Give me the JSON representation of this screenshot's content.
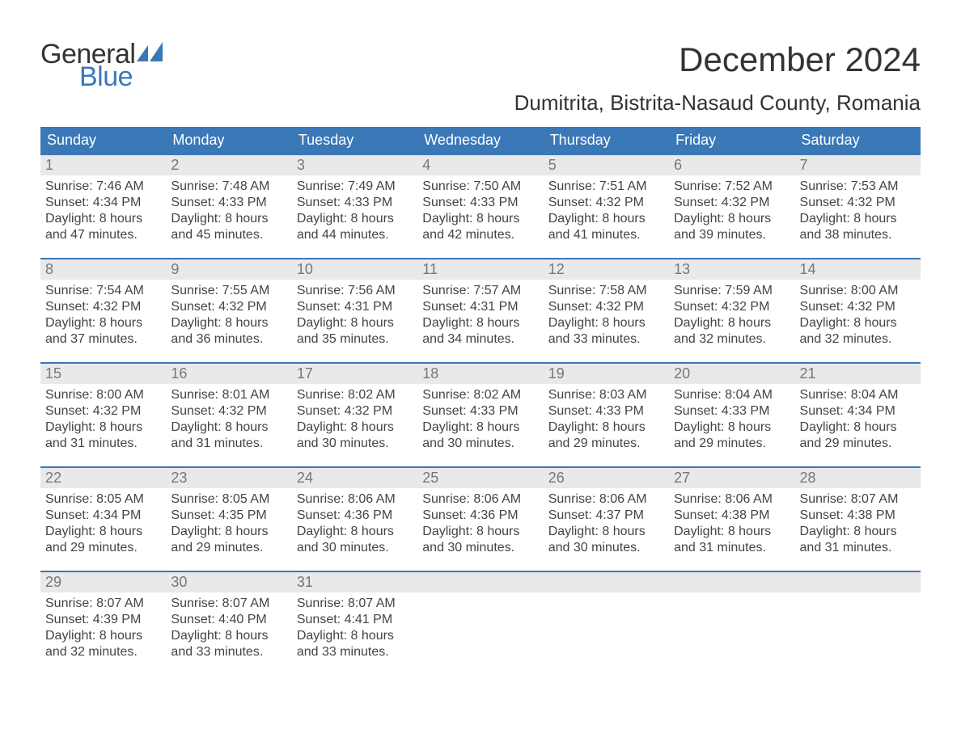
{
  "colors": {
    "header_bg": "#3a78b8",
    "header_text": "#ffffff",
    "daynum_bg": "#e9e9e9",
    "daynum_text": "#777777",
    "body_text": "#444444",
    "rule": "#3a78b8",
    "page_bg": "#ffffff",
    "logo_general": "#333333",
    "logo_blue": "#3a78b8"
  },
  "typography": {
    "title_fontsize": 42,
    "location_fontsize": 26,
    "weekday_fontsize": 18,
    "daynum_fontsize": 18,
    "body_fontsize": 16,
    "logo_fontsize": 34
  },
  "logo": {
    "line1": "General",
    "line2": "Blue"
  },
  "title": "December 2024",
  "location": "Dumitrita, Bistrita-Nasaud County, Romania",
  "weekdays": [
    "Sunday",
    "Monday",
    "Tuesday",
    "Wednesday",
    "Thursday",
    "Friday",
    "Saturday"
  ],
  "labels": {
    "sunrise": "Sunrise:",
    "sunset": "Sunset:",
    "daylight": "Daylight:"
  },
  "weeks": [
    [
      {
        "n": "1",
        "sunrise": "7:46 AM",
        "sunset": "4:34 PM",
        "daylight1": "8 hours",
        "daylight2": "and 47 minutes."
      },
      {
        "n": "2",
        "sunrise": "7:48 AM",
        "sunset": "4:33 PM",
        "daylight1": "8 hours",
        "daylight2": "and 45 minutes."
      },
      {
        "n": "3",
        "sunrise": "7:49 AM",
        "sunset": "4:33 PM",
        "daylight1": "8 hours",
        "daylight2": "and 44 minutes."
      },
      {
        "n": "4",
        "sunrise": "7:50 AM",
        "sunset": "4:33 PM",
        "daylight1": "8 hours",
        "daylight2": "and 42 minutes."
      },
      {
        "n": "5",
        "sunrise": "7:51 AM",
        "sunset": "4:32 PM",
        "daylight1": "8 hours",
        "daylight2": "and 41 minutes."
      },
      {
        "n": "6",
        "sunrise": "7:52 AM",
        "sunset": "4:32 PM",
        "daylight1": "8 hours",
        "daylight2": "and 39 minutes."
      },
      {
        "n": "7",
        "sunrise": "7:53 AM",
        "sunset": "4:32 PM",
        "daylight1": "8 hours",
        "daylight2": "and 38 minutes."
      }
    ],
    [
      {
        "n": "8",
        "sunrise": "7:54 AM",
        "sunset": "4:32 PM",
        "daylight1": "8 hours",
        "daylight2": "and 37 minutes."
      },
      {
        "n": "9",
        "sunrise": "7:55 AM",
        "sunset": "4:32 PM",
        "daylight1": "8 hours",
        "daylight2": "and 36 minutes."
      },
      {
        "n": "10",
        "sunrise": "7:56 AM",
        "sunset": "4:31 PM",
        "daylight1": "8 hours",
        "daylight2": "and 35 minutes."
      },
      {
        "n": "11",
        "sunrise": "7:57 AM",
        "sunset": "4:31 PM",
        "daylight1": "8 hours",
        "daylight2": "and 34 minutes."
      },
      {
        "n": "12",
        "sunrise": "7:58 AM",
        "sunset": "4:32 PM",
        "daylight1": "8 hours",
        "daylight2": "and 33 minutes."
      },
      {
        "n": "13",
        "sunrise": "7:59 AM",
        "sunset": "4:32 PM",
        "daylight1": "8 hours",
        "daylight2": "and 32 minutes."
      },
      {
        "n": "14",
        "sunrise": "8:00 AM",
        "sunset": "4:32 PM",
        "daylight1": "8 hours",
        "daylight2": "and 32 minutes."
      }
    ],
    [
      {
        "n": "15",
        "sunrise": "8:00 AM",
        "sunset": "4:32 PM",
        "daylight1": "8 hours",
        "daylight2": "and 31 minutes."
      },
      {
        "n": "16",
        "sunrise": "8:01 AM",
        "sunset": "4:32 PM",
        "daylight1": "8 hours",
        "daylight2": "and 31 minutes."
      },
      {
        "n": "17",
        "sunrise": "8:02 AM",
        "sunset": "4:32 PM",
        "daylight1": "8 hours",
        "daylight2": "and 30 minutes."
      },
      {
        "n": "18",
        "sunrise": "8:02 AM",
        "sunset": "4:33 PM",
        "daylight1": "8 hours",
        "daylight2": "and 30 minutes."
      },
      {
        "n": "19",
        "sunrise": "8:03 AM",
        "sunset": "4:33 PM",
        "daylight1": "8 hours",
        "daylight2": "and 29 minutes."
      },
      {
        "n": "20",
        "sunrise": "8:04 AM",
        "sunset": "4:33 PM",
        "daylight1": "8 hours",
        "daylight2": "and 29 minutes."
      },
      {
        "n": "21",
        "sunrise": "8:04 AM",
        "sunset": "4:34 PM",
        "daylight1": "8 hours",
        "daylight2": "and 29 minutes."
      }
    ],
    [
      {
        "n": "22",
        "sunrise": "8:05 AM",
        "sunset": "4:34 PM",
        "daylight1": "8 hours",
        "daylight2": "and 29 minutes."
      },
      {
        "n": "23",
        "sunrise": "8:05 AM",
        "sunset": "4:35 PM",
        "daylight1": "8 hours",
        "daylight2": "and 29 minutes."
      },
      {
        "n": "24",
        "sunrise": "8:06 AM",
        "sunset": "4:36 PM",
        "daylight1": "8 hours",
        "daylight2": "and 30 minutes."
      },
      {
        "n": "25",
        "sunrise": "8:06 AM",
        "sunset": "4:36 PM",
        "daylight1": "8 hours",
        "daylight2": "and 30 minutes."
      },
      {
        "n": "26",
        "sunrise": "8:06 AM",
        "sunset": "4:37 PM",
        "daylight1": "8 hours",
        "daylight2": "and 30 minutes."
      },
      {
        "n": "27",
        "sunrise": "8:06 AM",
        "sunset": "4:38 PM",
        "daylight1": "8 hours",
        "daylight2": "and 31 minutes."
      },
      {
        "n": "28",
        "sunrise": "8:07 AM",
        "sunset": "4:38 PM",
        "daylight1": "8 hours",
        "daylight2": "and 31 minutes."
      }
    ],
    [
      {
        "n": "29",
        "sunrise": "8:07 AM",
        "sunset": "4:39 PM",
        "daylight1": "8 hours",
        "daylight2": "and 32 minutes."
      },
      {
        "n": "30",
        "sunrise": "8:07 AM",
        "sunset": "4:40 PM",
        "daylight1": "8 hours",
        "daylight2": "and 33 minutes."
      },
      {
        "n": "31",
        "sunrise": "8:07 AM",
        "sunset": "4:41 PM",
        "daylight1": "8 hours",
        "daylight2": "and 33 minutes."
      },
      {
        "empty": true
      },
      {
        "empty": true
      },
      {
        "empty": true
      },
      {
        "empty": true
      }
    ]
  ]
}
